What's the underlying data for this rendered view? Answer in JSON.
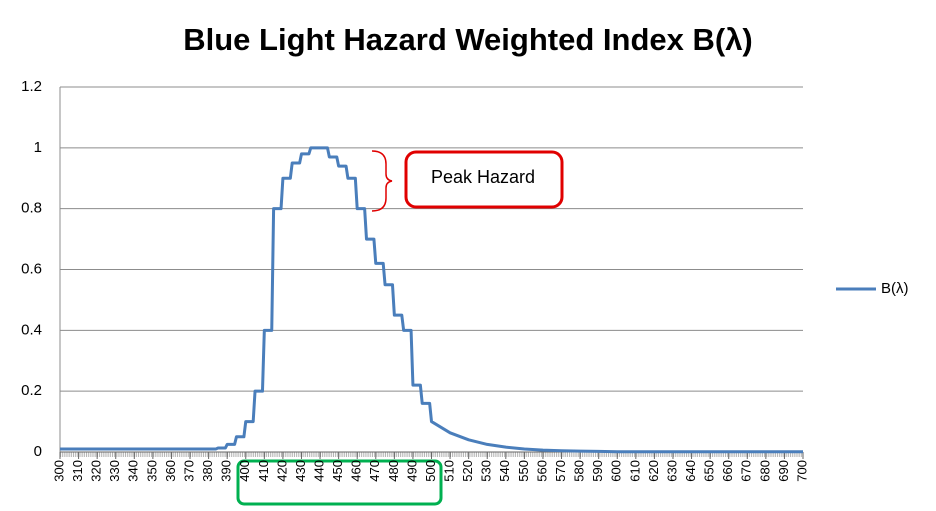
{
  "chart_data": {
    "type": "line",
    "title": "Blue Light Hazard Weighted Index B(λ)",
    "annotation": "Peak Hazard",
    "x": [
      300,
      384,
      385,
      389,
      390,
      394,
      395,
      399,
      400,
      404,
      405,
      409,
      410,
      414,
      415,
      419,
      420,
      424,
      425,
      429,
      430,
      434,
      435,
      444,
      445,
      449,
      450,
      454,
      455,
      459,
      460,
      464,
      465,
      469,
      470,
      474,
      475,
      479,
      480,
      484,
      485,
      489,
      490,
      494,
      495,
      499,
      500,
      510,
      520,
      530,
      540,
      550,
      560,
      570,
      580,
      590,
      600,
      700
    ],
    "series": [
      {
        "name": "B(λ)",
        "color": "#4a7ebb",
        "values": [
          0.01,
          0.01,
          0.013,
          0.013,
          0.025,
          0.025,
          0.05,
          0.05,
          0.1,
          0.1,
          0.2,
          0.2,
          0.4,
          0.4,
          0.8,
          0.8,
          0.9,
          0.9,
          0.95,
          0.95,
          0.98,
          0.98,
          1,
          1,
          0.97,
          0.97,
          0.94,
          0.94,
          0.9,
          0.9,
          0.8,
          0.8,
          0.7,
          0.7,
          0.62,
          0.62,
          0.55,
          0.55,
          0.45,
          0.45,
          0.4,
          0.4,
          0.22,
          0.22,
          0.16,
          0.16,
          0.1,
          0.063,
          0.04,
          0.025,
          0.016,
          0.01,
          0.006,
          0.004,
          0.003,
          0.002,
          0.001,
          0.001
        ]
      }
    ],
    "xlim": [
      300,
      700
    ],
    "xticks": [
      300,
      310,
      320,
      330,
      340,
      350,
      360,
      370,
      380,
      390,
      400,
      410,
      420,
      430,
      440,
      450,
      460,
      470,
      480,
      490,
      500,
      510,
      520,
      530,
      540,
      550,
      560,
      570,
      580,
      590,
      600,
      610,
      620,
      630,
      640,
      650,
      660,
      670,
      680,
      690,
      700
    ],
    "ylim": [
      0,
      1.2
    ],
    "yticks": [
      0,
      0.2,
      0.4,
      0.6,
      0.8,
      1,
      1.2
    ],
    "grid": true,
    "legend": "right"
  }
}
